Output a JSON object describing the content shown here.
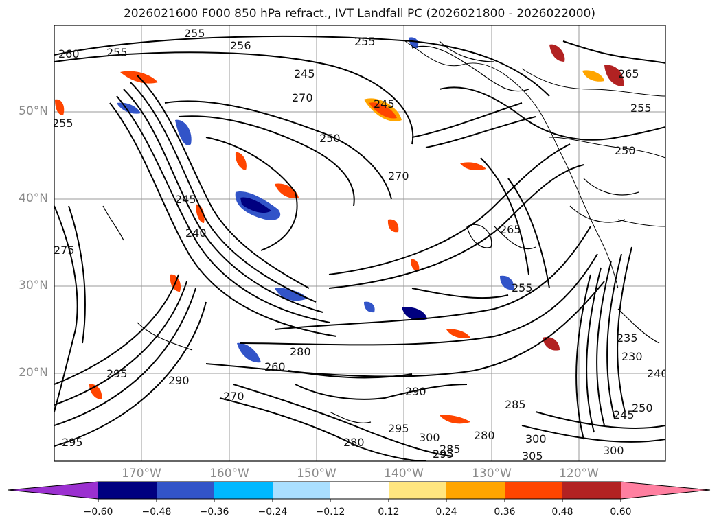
{
  "title": "2026021600 F000 850 hPa refract., IVT Landfall PC (2026021800 - 2026022000)",
  "map": {
    "lat_labels": [
      "50°N",
      "40°N",
      "30°N",
      "20°N"
    ],
    "lon_labels": [
      "170°W",
      "160°W",
      "150°W",
      "140°W",
      "130°W",
      "120°W"
    ],
    "contour_labels": [
      "255",
      "255",
      "260",
      "256",
      "255",
      "245",
      "245",
      "255",
      "265",
      "255",
      "270",
      "275",
      "250",
      "270",
      "245",
      "240",
      "265",
      "255",
      "280",
      "260",
      "290",
      "285",
      "280",
      "270",
      "295",
      "300",
      "285",
      "280",
      "290",
      "295",
      "300",
      "305",
      "295",
      "300",
      "295",
      "245",
      "250",
      "230",
      "235",
      "240",
      "250"
    ]
  },
  "colorbar": {
    "ticks": [
      "−0.60",
      "−0.48",
      "−0.36",
      "−0.24",
      "−0.12",
      "0.12",
      "0.24",
      "0.36",
      "0.48",
      "0.60"
    ],
    "colors": [
      "#9b30d0",
      "#000080",
      "#3254c8",
      "#00b8ff",
      "#aadfff",
      "#ffffff",
      "#ffe680",
      "#ffa500",
      "#ff4500",
      "#b22222",
      "#ff7fa0"
    ]
  }
}
